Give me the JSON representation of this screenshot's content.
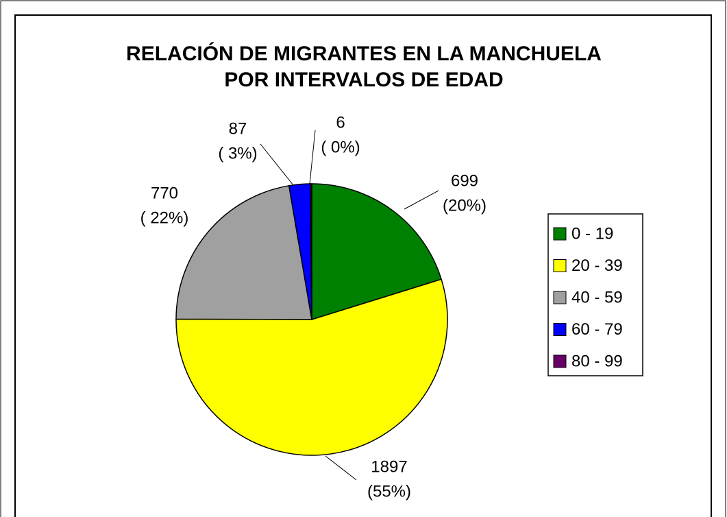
{
  "chart_data": {
    "type": "pie",
    "title": [
      "RELACIÓN DE MIGRANTES EN LA MANCHUELA",
      "POR INTERVALOS DE EDAD"
    ],
    "categories": [
      "0 - 19",
      "20 - 39",
      "40 - 59",
      "60 - 79",
      "80 - 99"
    ],
    "values": [
      699,
      1897,
      770,
      87,
      6
    ],
    "percent_labels": [
      "(20%)",
      "(55%)",
      "( 22%)",
      "( 3%)",
      "( 0%)"
    ],
    "colors": [
      "#008000",
      "#ffff00",
      "#a0a0a0",
      "#0000ff",
      "#660066"
    ],
    "legend": "right"
  }
}
